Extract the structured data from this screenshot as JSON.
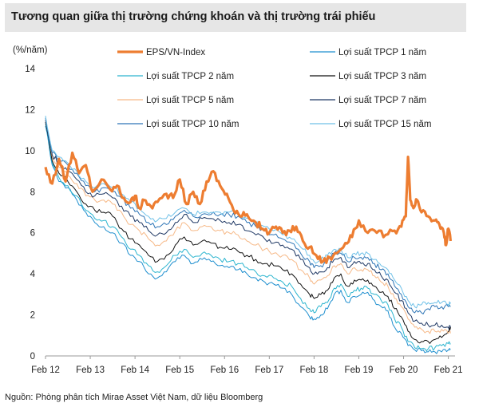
{
  "title": "Tương quan giữa thị trường chứng khoán và thị trường trái phiếu",
  "source": "Nguồn: Phòng phân tích Mirae Asset Việt Nam, dữ liệu Bloomberg",
  "chart_data": {
    "type": "line",
    "title": "Tương quan giữa thị trường chứng khoán và thị trường trái phiếu",
    "ylabel": "(%/năm)",
    "xlabel": "",
    "ylim": [
      0,
      14
    ],
    "xlim": [
      2012.0,
      2021.15
    ],
    "y_ticks": [
      0,
      2,
      4,
      6,
      8,
      10,
      12,
      14
    ],
    "x_ticks": [
      {
        "label": "Feb 12",
        "x": 2012.0
      },
      {
        "label": "Feb 13",
        "x": 2013.0
      },
      {
        "label": "Feb 14",
        "x": 2014.0
      },
      {
        "label": "Feb 15",
        "x": 2015.0
      },
      {
        "label": "Feb 16",
        "x": 2016.0
      },
      {
        "label": "Feb 17",
        "x": 2017.0
      },
      {
        "label": "Feb 18",
        "x": 2018.0
      },
      {
        "label": "Feb 19",
        "x": 2019.0
      },
      {
        "label": "Feb 20",
        "x": 2020.0
      },
      {
        "label": "Feb 21",
        "x": 2021.0
      }
    ],
    "legend": "top, two columns",
    "series": [
      {
        "name": "EPS/VN-Index",
        "color": "#ed7d31",
        "width": 3.2,
        "x": [
          2012.0,
          2012.15,
          2012.3,
          2012.45,
          2012.6,
          2012.75,
          2012.9,
          2013.05,
          2013.25,
          2013.45,
          2013.6,
          2013.75,
          2013.9,
          2014.0,
          2014.1,
          2014.2,
          2014.35,
          2014.5,
          2014.7,
          2014.85,
          2015.0,
          2015.15,
          2015.3,
          2015.45,
          2015.6,
          2015.75,
          2015.9,
          2016.05,
          2016.2,
          2016.35,
          2016.5,
          2016.7,
          2016.85,
          2017.0,
          2017.15,
          2017.3,
          2017.45,
          2017.6,
          2017.75,
          2017.9,
          2018.05,
          2018.2,
          2018.35,
          2018.5,
          2018.7,
          2018.85,
          2019.0,
          2019.2,
          2019.4,
          2019.6,
          2019.8,
          2019.95,
          2020.05,
          2020.1,
          2020.15,
          2020.22,
          2020.3,
          2020.4,
          2020.55,
          2020.7,
          2020.8,
          2020.9,
          2020.95,
          2021.0,
          2021.05
        ],
        "y": [
          9.2,
          8.4,
          9.6,
          8.5,
          9.9,
          8.9,
          9.3,
          8.0,
          8.6,
          8.1,
          8.3,
          7.7,
          7.5,
          7.8,
          7.2,
          7.6,
          7.3,
          7.5,
          7.9,
          7.7,
          8.6,
          7.4,
          8.0,
          7.4,
          8.5,
          9.0,
          8.3,
          7.9,
          7.1,
          6.8,
          6.9,
          6.5,
          6.2,
          6.0,
          6.3,
          6.0,
          6.1,
          6.3,
          5.6,
          5.3,
          4.9,
          4.6,
          4.8,
          5.0,
          5.5,
          5.8,
          6.6,
          6.0,
          6.0,
          5.9,
          6.1,
          6.3,
          6.8,
          9.7,
          7.6,
          7.2,
          7.6,
          7.0,
          6.8,
          6.6,
          6.4,
          6.0,
          5.4,
          6.2,
          5.6
        ]
      },
      {
        "name": "Lợi suất TPCP 1 năm",
        "color": "#1f8fcf",
        "width": 1.0,
        "x": [
          2012.0,
          2012.15,
          2012.3,
          2012.5,
          2012.7,
          2012.9,
          2013.1,
          2013.3,
          2013.5,
          2013.7,
          2013.9,
          2014.1,
          2014.3,
          2014.5,
          2014.7,
          2014.9,
          2015.1,
          2015.3,
          2015.5,
          2015.7,
          2015.9,
          2016.1,
          2016.3,
          2016.5,
          2016.7,
          2016.9,
          2017.1,
          2017.3,
          2017.5,
          2017.7,
          2017.9,
          2018.0,
          2018.15,
          2018.3,
          2018.45,
          2018.6,
          2018.75,
          2018.9,
          2019.05,
          2019.2,
          2019.35,
          2019.5,
          2019.65,
          2019.8,
          2019.95,
          2020.1,
          2020.25,
          2020.4,
          2020.55,
          2020.7,
          2020.85,
          2021.0,
          2021.05
        ],
        "y": [
          11.2,
          9.3,
          8.5,
          8.2,
          7.6,
          7.0,
          6.5,
          6.3,
          6.0,
          5.5,
          4.9,
          4.6,
          4.0,
          3.8,
          4.1,
          4.6,
          4.9,
          4.5,
          4.7,
          4.6,
          4.4,
          4.3,
          4.2,
          4.0,
          3.8,
          3.6,
          3.5,
          3.3,
          3.0,
          2.4,
          1.9,
          1.8,
          2.0,
          2.3,
          3.0,
          3.2,
          2.6,
          2.9,
          3.0,
          3.1,
          2.7,
          2.4,
          2.2,
          1.4,
          1.1,
          0.5,
          0.3,
          0.25,
          0.2,
          0.2,
          0.2,
          0.3,
          0.3
        ]
      },
      {
        "name": "Lợi suất TPCP 2 năm",
        "color": "#2cb5cf",
        "width": 1.0,
        "x": [
          2012.0,
          2012.15,
          2012.3,
          2012.5,
          2012.7,
          2012.9,
          2013.1,
          2013.3,
          2013.5,
          2013.7,
          2013.9,
          2014.1,
          2014.3,
          2014.5,
          2014.7,
          2014.9,
          2015.1,
          2015.3,
          2015.5,
          2015.7,
          2015.9,
          2016.1,
          2016.3,
          2016.5,
          2016.7,
          2016.9,
          2017.1,
          2017.3,
          2017.5,
          2017.7,
          2017.9,
          2018.0,
          2018.15,
          2018.3,
          2018.45,
          2018.6,
          2018.75,
          2018.9,
          2019.05,
          2019.2,
          2019.35,
          2019.5,
          2019.65,
          2019.8,
          2019.95,
          2020.1,
          2020.25,
          2020.4,
          2020.55,
          2020.7,
          2020.85,
          2021.0,
          2021.05
        ],
        "y": [
          11.3,
          9.4,
          8.7,
          8.3,
          7.8,
          7.1,
          6.7,
          6.6,
          6.3,
          5.8,
          5.2,
          4.9,
          4.4,
          4.1,
          4.4,
          4.9,
          5.2,
          4.8,
          5.0,
          4.9,
          4.7,
          4.6,
          4.5,
          4.3,
          4.1,
          3.9,
          3.8,
          3.6,
          3.4,
          2.8,
          2.3,
          2.1,
          2.4,
          2.6,
          3.3,
          3.5,
          2.9,
          3.2,
          3.3,
          3.3,
          3.0,
          2.7,
          2.5,
          1.8,
          1.4,
          0.7,
          0.4,
          0.35,
          0.35,
          0.4,
          0.5,
          0.6,
          0.6
        ]
      },
      {
        "name": "Lợi suất TPCP 3 năm",
        "color": "#111111",
        "width": 1.0,
        "x": [
          2012.0,
          2012.15,
          2012.3,
          2012.5,
          2012.7,
          2012.9,
          2013.1,
          2013.3,
          2013.5,
          2013.7,
          2013.9,
          2014.1,
          2014.3,
          2014.5,
          2014.7,
          2014.9,
          2015.1,
          2015.3,
          2015.5,
          2015.7,
          2015.9,
          2016.1,
          2016.3,
          2016.5,
          2016.7,
          2016.9,
          2017.1,
          2017.3,
          2017.5,
          2017.7,
          2017.9,
          2018.0,
          2018.15,
          2018.3,
          2018.45,
          2018.6,
          2018.75,
          2018.9,
          2019.05,
          2019.2,
          2019.35,
          2019.5,
          2019.65,
          2019.8,
          2019.95,
          2020.1,
          2020.25,
          2020.4,
          2020.55,
          2020.7,
          2020.85,
          2021.0,
          2021.05
        ],
        "y": [
          11.4,
          9.5,
          8.9,
          8.5,
          8.0,
          7.4,
          7.1,
          7.0,
          6.8,
          6.2,
          5.7,
          5.4,
          4.9,
          4.6,
          4.9,
          5.4,
          5.8,
          5.4,
          5.6,
          5.5,
          5.3,
          5.2,
          5.1,
          4.9,
          4.7,
          4.5,
          4.4,
          4.2,
          4.0,
          3.5,
          3.0,
          2.8,
          3.0,
          3.2,
          3.8,
          4.0,
          3.4,
          3.7,
          3.7,
          3.7,
          3.4,
          3.1,
          2.9,
          2.3,
          1.9,
          1.2,
          0.8,
          0.7,
          0.7,
          0.8,
          0.9,
          1.2,
          1.4
        ]
      },
      {
        "name": "Lợi suất TPCP 5 năm",
        "color": "#f6b988",
        "width": 1.0,
        "x": [
          2012.0,
          2012.15,
          2012.3,
          2012.5,
          2012.7,
          2012.9,
          2013.1,
          2013.3,
          2013.5,
          2013.7,
          2013.9,
          2014.1,
          2014.3,
          2014.5,
          2014.7,
          2014.9,
          2015.1,
          2015.3,
          2015.5,
          2015.7,
          2015.9,
          2016.1,
          2016.3,
          2016.5,
          2016.7,
          2016.9,
          2017.1,
          2017.3,
          2017.5,
          2017.7,
          2017.9,
          2018.0,
          2018.15,
          2018.3,
          2018.45,
          2018.6,
          2018.75,
          2018.9,
          2019.05,
          2019.2,
          2019.35,
          2019.5,
          2019.65,
          2019.8,
          2019.95,
          2020.1,
          2020.25,
          2020.4,
          2020.55,
          2020.7,
          2020.85,
          2021.0,
          2021.05
        ],
        "y": [
          11.5,
          9.7,
          9.2,
          8.8,
          8.4,
          7.8,
          7.6,
          7.6,
          7.4,
          7.0,
          6.4,
          6.1,
          5.7,
          5.4,
          5.6,
          6.1,
          6.5,
          6.1,
          6.3,
          6.3,
          6.1,
          6.0,
          5.9,
          5.6,
          5.4,
          5.2,
          5.0,
          4.9,
          4.7,
          4.2,
          3.8,
          3.5,
          3.7,
          3.9,
          4.4,
          4.5,
          4.0,
          4.3,
          4.2,
          4.2,
          3.9,
          3.6,
          3.4,
          2.8,
          2.4,
          1.8,
          1.4,
          1.3,
          1.2,
          1.2,
          1.3,
          1.1,
          1.1
        ]
      },
      {
        "name": "Lợi suất TPCP 7 năm",
        "color": "#1f3864",
        "width": 1.0,
        "x": [
          2012.0,
          2012.15,
          2012.3,
          2012.5,
          2012.7,
          2012.9,
          2013.1,
          2013.3,
          2013.5,
          2013.7,
          2013.9,
          2014.1,
          2014.3,
          2014.5,
          2014.7,
          2014.9,
          2015.1,
          2015.3,
          2015.5,
          2015.7,
          2015.9,
          2016.1,
          2016.3,
          2016.5,
          2016.7,
          2016.9,
          2017.1,
          2017.3,
          2017.5,
          2017.7,
          2017.9,
          2018.0,
          2018.15,
          2018.3,
          2018.45,
          2018.6,
          2018.75,
          2018.9,
          2019.05,
          2019.2,
          2019.35,
          2019.5,
          2019.65,
          2019.8,
          2019.95,
          2020.1,
          2020.25,
          2020.4,
          2020.55,
          2020.7,
          2020.85,
          2021.0,
          2021.05
        ],
        "y": [
          11.5,
          9.8,
          9.4,
          9.0,
          8.6,
          8.0,
          7.8,
          7.9,
          7.7,
          7.3,
          6.8,
          6.5,
          6.1,
          5.9,
          6.0,
          6.5,
          6.9,
          6.5,
          6.7,
          6.7,
          6.6,
          6.5,
          6.4,
          6.1,
          5.9,
          5.7,
          5.5,
          5.4,
          5.2,
          4.7,
          4.3,
          4.0,
          4.1,
          4.3,
          4.7,
          4.8,
          4.3,
          4.6,
          4.5,
          4.5,
          4.2,
          3.9,
          3.7,
          3.1,
          2.7,
          2.1,
          1.7,
          1.6,
          1.5,
          1.5,
          1.5,
          1.4,
          1.4
        ]
      },
      {
        "name": "Lợi suất TPCP 10 năm",
        "color": "#2e75b6",
        "width": 1.0,
        "x": [
          2012.0,
          2012.15,
          2012.3,
          2012.5,
          2012.7,
          2012.9,
          2013.1,
          2013.3,
          2013.5,
          2013.7,
          2013.9,
          2014.1,
          2014.3,
          2014.5,
          2014.7,
          2014.9,
          2015.1,
          2015.3,
          2015.5,
          2015.7,
          2015.9,
          2016.1,
          2016.3,
          2016.5,
          2016.7,
          2016.9,
          2017.1,
          2017.3,
          2017.5,
          2017.7,
          2017.9,
          2018.0,
          2018.15,
          2018.3,
          2018.45,
          2018.6,
          2018.75,
          2018.9,
          2019.05,
          2019.2,
          2019.35,
          2019.5,
          2019.65,
          2019.8,
          2019.95,
          2020.1,
          2020.25,
          2020.4,
          2020.55,
          2020.7,
          2020.85,
          2021.0,
          2021.05
        ],
        "y": [
          11.6,
          9.9,
          9.6,
          9.3,
          8.9,
          8.3,
          8.0,
          8.2,
          8.0,
          7.7,
          7.2,
          6.9,
          6.5,
          6.3,
          6.4,
          6.8,
          7.1,
          6.8,
          6.9,
          6.9,
          6.9,
          6.9,
          6.8,
          6.5,
          6.3,
          6.1,
          5.9,
          5.7,
          5.5,
          5.0,
          4.6,
          4.3,
          4.4,
          4.6,
          5.0,
          5.0,
          4.6,
          4.8,
          4.8,
          4.8,
          4.5,
          4.2,
          4.0,
          3.4,
          3.0,
          2.4,
          2.1,
          2.1,
          2.3,
          2.4,
          2.4,
          2.4,
          2.4
        ]
      },
      {
        "name": "Lợi suất TPCP 15 năm",
        "color": "#6fc1e8",
        "width": 1.0,
        "x": [
          2012.0,
          2012.15,
          2012.3,
          2012.5,
          2012.7,
          2012.9,
          2013.1,
          2013.3,
          2013.5,
          2013.7,
          2013.9,
          2014.1,
          2014.3,
          2014.5,
          2014.7,
          2014.9,
          2015.1,
          2015.3,
          2015.5,
          2015.7,
          2015.9,
          2016.1,
          2016.3,
          2016.5,
          2016.7,
          2016.9,
          2017.1,
          2017.3,
          2017.5,
          2017.7,
          2017.9,
          2018.0,
          2018.15,
          2018.3,
          2018.45,
          2018.6,
          2018.75,
          2018.9,
          2019.05,
          2019.2,
          2019.35,
          2019.5,
          2019.65,
          2019.8,
          2019.95,
          2020.1,
          2020.25,
          2020.4,
          2020.55,
          2020.7,
          2020.85,
          2021.0,
          2021.05
        ],
        "y": [
          11.7,
          10.0,
          9.7,
          9.4,
          9.0,
          8.5,
          8.2,
          8.4,
          8.2,
          7.9,
          7.5,
          7.2,
          6.8,
          6.6,
          6.7,
          7.0,
          7.2,
          6.9,
          7.0,
          7.0,
          7.0,
          7.0,
          6.9,
          6.7,
          6.5,
          6.3,
          6.1,
          5.9,
          5.7,
          5.3,
          4.9,
          4.6,
          4.7,
          4.9,
          5.2,
          5.2,
          4.8,
          5.0,
          5.0,
          5.0,
          4.7,
          4.4,
          4.2,
          3.7,
          3.3,
          2.7,
          2.4,
          2.5,
          2.6,
          2.6,
          2.6,
          2.5,
          2.6
        ]
      }
    ]
  }
}
